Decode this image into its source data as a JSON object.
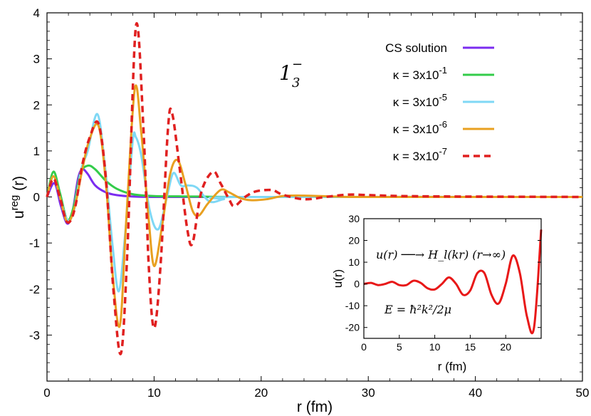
{
  "chart_data": [
    {
      "type": "line",
      "xlabel": "r (fm)",
      "ylabel_base": "u",
      "ylabel_sup": "reg",
      "ylabel_rest": " (r)",
      "xlim": [
        0,
        50
      ],
      "ylim": [
        -4,
        4
      ],
      "xticks": [
        0,
        10,
        20,
        30,
        40,
        50
      ],
      "yticks": [
        4,
        3,
        2,
        1,
        0,
        -1,
        -2,
        -3
      ],
      "state_label_main": "1",
      "state_label_sup": "−",
      "state_label_sub": "3",
      "legend_position": "top-right",
      "series": [
        {
          "name": "CS solution",
          "color": "#7b2cf0",
          "dash": "solid",
          "points": [
            [
              0,
              0
            ],
            [
              0.7,
              0.3
            ],
            [
              1.3,
              -0.2
            ],
            [
              1.9,
              -0.58
            ],
            [
              2.4,
              -0.3
            ],
            [
              2.9,
              0.4
            ],
            [
              3.3,
              0.6
            ],
            [
              3.8,
              0.5
            ],
            [
              4.5,
              0.25
            ],
            [
              5.5,
              0.1
            ],
            [
              6.5,
              0.04
            ],
            [
              8,
              0.01
            ],
            [
              10,
              0
            ],
            [
              15,
              0
            ],
            [
              50,
              0
            ]
          ]
        },
        {
          "name": "κ = 3x10",
          "name_sup": "-1",
          "color": "#33cc4a",
          "dash": "solid",
          "points": [
            [
              0,
              0
            ],
            [
              0.6,
              0.55
            ],
            [
              1.2,
              0.1
            ],
            [
              1.9,
              -0.5
            ],
            [
              2.5,
              -0.2
            ],
            [
              3.1,
              0.5
            ],
            [
              3.8,
              0.68
            ],
            [
              4.5,
              0.6
            ],
            [
              5.5,
              0.35
            ],
            [
              6.5,
              0.18
            ],
            [
              8,
              0.06
            ],
            [
              10,
              0.02
            ],
            [
              14,
              0.01
            ],
            [
              20,
              0
            ],
            [
              50,
              0
            ]
          ]
        },
        {
          "name": "κ = 3x10",
          "name_sup": "-5",
          "color": "#7fd8f5",
          "dash": "solid",
          "points": [
            [
              0,
              0
            ],
            [
              0.6,
              0.45
            ],
            [
              1.2,
              0
            ],
            [
              1.9,
              -0.5
            ],
            [
              2.5,
              -0.3
            ],
            [
              3.2,
              0.6
            ],
            [
              3.8,
              1
            ],
            [
              4.7,
              1.8
            ],
            [
              5.4,
              0.7
            ],
            [
              6.1,
              -1
            ],
            [
              6.7,
              -2.05
            ],
            [
              7.3,
              -0.8
            ],
            [
              8,
              1.2
            ],
            [
              8.3,
              1.3
            ],
            [
              8.8,
              0.9
            ],
            [
              9.6,
              -0.3
            ],
            [
              10.4,
              -0.7
            ],
            [
              11.2,
              0
            ],
            [
              11.8,
              0.52
            ],
            [
              12.5,
              0.25
            ],
            [
              13.2,
              0.25
            ],
            [
              14,
              0.2
            ],
            [
              15.2,
              -0.1
            ],
            [
              16.5,
              -0.05
            ],
            [
              18,
              0
            ],
            [
              50,
              0
            ]
          ]
        },
        {
          "name": "κ = 3x10",
          "name_sup": "-6",
          "color": "#e8a020",
          "dash": "solid",
          "points": [
            [
              0,
              0
            ],
            [
              0.6,
              0.45
            ],
            [
              1.2,
              0
            ],
            [
              1.9,
              -0.55
            ],
            [
              2.6,
              -0.2
            ],
            [
              3.3,
              0.6
            ],
            [
              3.9,
              1.2
            ],
            [
              4.8,
              1.55
            ],
            [
              5.5,
              0.3
            ],
            [
              6.1,
              -1.6
            ],
            [
              6.8,
              -2.8
            ],
            [
              7.4,
              -0.5
            ],
            [
              8.2,
              2.35
            ],
            [
              8.8,
              1.4
            ],
            [
              9.5,
              -0.5
            ],
            [
              10,
              -1.5
            ],
            [
              10.7,
              -0.7
            ],
            [
              11.5,
              0.5
            ],
            [
              12.2,
              0.8
            ],
            [
              12.9,
              0.3
            ],
            [
              13.6,
              -0.3
            ],
            [
              14.2,
              -0.4
            ],
            [
              15,
              -0.15
            ],
            [
              16.2,
              0.15
            ],
            [
              17,
              0.1
            ],
            [
              18,
              -0.02
            ],
            [
              19,
              -0.07
            ],
            [
              20.5,
              -0.05
            ],
            [
              22,
              0.02
            ],
            [
              24,
              0.03
            ],
            [
              27,
              0.01
            ],
            [
              30,
              0
            ],
            [
              50,
              0
            ]
          ]
        },
        {
          "name": "κ = 3x10",
          "name_sup": "-7",
          "color": "#e02020",
          "dash": "dashed",
          "points": [
            [
              0,
              0
            ],
            [
              0.6,
              0.4
            ],
            [
              1.2,
              0
            ],
            [
              1.9,
              -0.55
            ],
            [
              2.6,
              -0.25
            ],
            [
              3.3,
              0.7
            ],
            [
              4,
              1.3
            ],
            [
              4.8,
              1.6
            ],
            [
              5.5,
              0.4
            ],
            [
              6.2,
              -2
            ],
            [
              6.9,
              -3.4
            ],
            [
              7.5,
              -1.2
            ],
            [
              8.3,
              3.7
            ],
            [
              9,
              1.5
            ],
            [
              9.5,
              -1.5
            ],
            [
              10,
              -2.85
            ],
            [
              10.6,
              -1.5
            ],
            [
              11.3,
              1.5
            ],
            [
              11.7,
              1.8
            ],
            [
              12.4,
              0.6
            ],
            [
              13.1,
              -0.7
            ],
            [
              13.6,
              -1
            ],
            [
              14.4,
              0.1
            ],
            [
              15.5,
              0.55
            ],
            [
              16.2,
              0.3
            ],
            [
              17,
              -0.05
            ],
            [
              17.5,
              -0.2
            ],
            [
              18.5,
              0
            ],
            [
              19.5,
              0.12
            ],
            [
              21,
              0.15
            ],
            [
              22,
              0.05
            ],
            [
              24,
              -0.05
            ],
            [
              26,
              0
            ],
            [
              28,
              0.05
            ],
            [
              30,
              0.04
            ],
            [
              33,
              0.02
            ],
            [
              38,
              0.01
            ],
            [
              50,
              0
            ]
          ]
        }
      ]
    },
    {
      "type": "line",
      "xlabel": "r (fm)",
      "ylabel": "u(r)",
      "xlim": [
        0,
        25
      ],
      "ylim": [
        -25,
        30
      ],
      "xticks": [
        0,
        5,
        10,
        15,
        20
      ],
      "yticks": [
        30,
        20,
        10,
        0,
        -10,
        -20
      ],
      "annotation_1": "u(r) ──→ H_l(kr)  (r→∞)",
      "annotation_2": "E = ħ²k²/2μ",
      "series": [
        {
          "color": "#e81818",
          "dash": "solid",
          "points": [
            [
              0,
              0
            ],
            [
              1,
              0.5
            ],
            [
              2,
              -0.5
            ],
            [
              3,
              0
            ],
            [
              4,
              1
            ],
            [
              5,
              -0.5
            ],
            [
              6,
              -0.5
            ],
            [
              7,
              1.5
            ],
            [
              8,
              0.5
            ],
            [
              9,
              -2
            ],
            [
              10,
              -2.5
            ],
            [
              11,
              0
            ],
            [
              12,
              3
            ],
            [
              13,
              0
            ],
            [
              14,
              -5
            ],
            [
              15,
              -3
            ],
            [
              16,
              5
            ],
            [
              17,
              5
            ],
            [
              18,
              -5
            ],
            [
              19,
              -9
            ],
            [
              20,
              0
            ],
            [
              21,
              13
            ],
            [
              22,
              5
            ],
            [
              23,
              -15
            ],
            [
              24,
              -20
            ],
            [
              25,
              25
            ]
          ]
        }
      ]
    }
  ]
}
